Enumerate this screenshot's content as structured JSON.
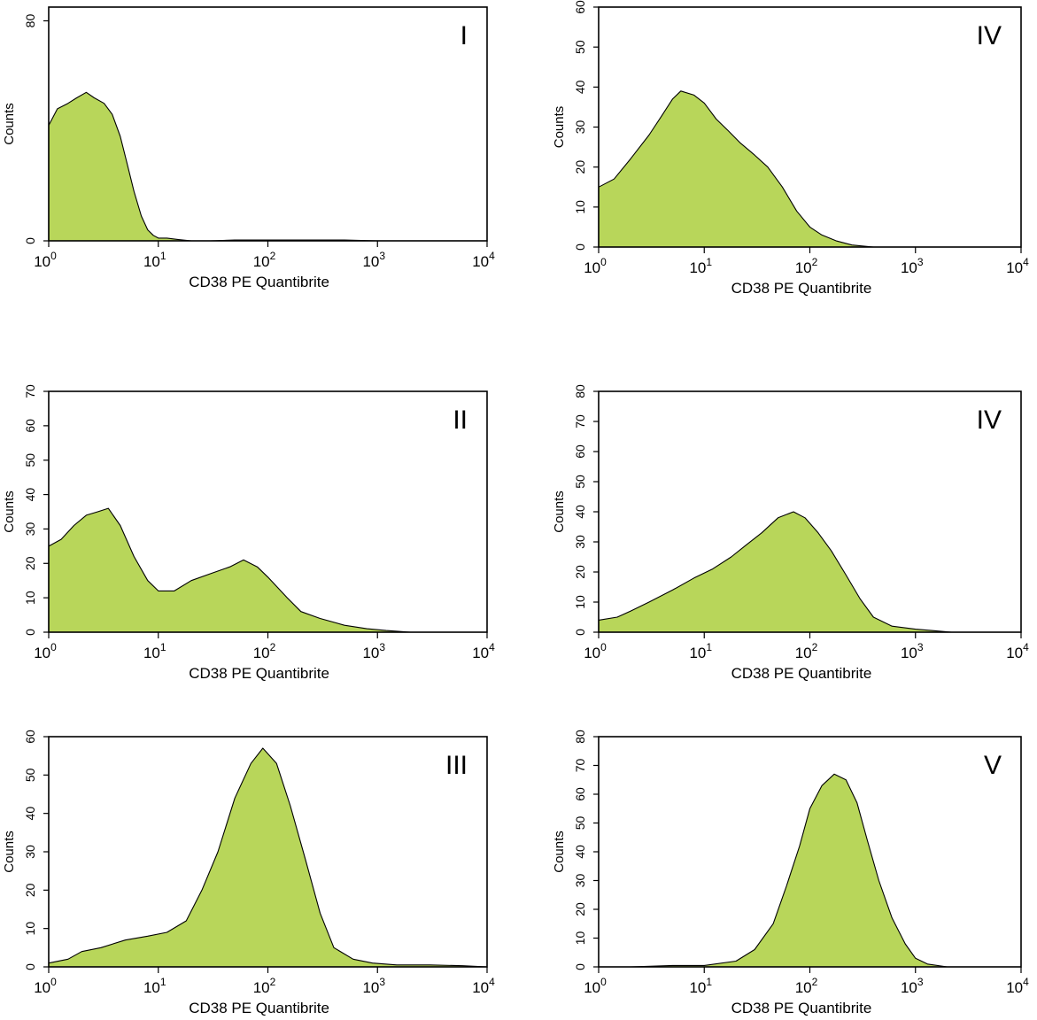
{
  "figure": {
    "title": ""
  },
  "colors": {
    "fill": "#b8d65a",
    "outline": "#000000",
    "background": "#ffffff"
  },
  "chart_data": [
    {
      "id": "I",
      "type": "area",
      "panel_label": "I",
      "xlabel": "CD38 PE Quantibrite",
      "ylabel": "Counts",
      "xscale": "log",
      "xlim": [
        1,
        10000
      ],
      "xtick_exponents": [
        "0",
        "1",
        "2",
        "3",
        "4"
      ],
      "ylim": [
        0,
        85
      ],
      "yticks": [
        "0",
        "80"
      ],
      "grid": false,
      "x": [
        1,
        1.2,
        1.5,
        1.8,
        2.2,
        2.6,
        3.2,
        3.8,
        4.5,
        5.2,
        6,
        7,
        8,
        9,
        10,
        12,
        15,
        20,
        30,
        50,
        100,
        200,
        500,
        1000,
        3000,
        10000
      ],
      "values": [
        42,
        48,
        50,
        52,
        54,
        52,
        50,
        46,
        38,
        28,
        18,
        9,
        4,
        2,
        1,
        1,
        0.5,
        0,
        0,
        0.3,
        0.3,
        0.3,
        0.3,
        0,
        0,
        0
      ]
    },
    {
      "id": "II",
      "type": "area",
      "panel_label": "II",
      "xlabel": "CD38 PE Quantibrite",
      "ylabel": "Counts",
      "xscale": "log",
      "xlim": [
        1,
        10000
      ],
      "xtick_exponents": [
        "0",
        "1",
        "2",
        "3",
        "4"
      ],
      "ylim": [
        0,
        70
      ],
      "yticks": [
        "0",
        "10",
        "20",
        "30",
        "40",
        "50",
        "60",
        "70"
      ],
      "grid": false,
      "x": [
        1,
        1.3,
        1.7,
        2.2,
        2.8,
        3.5,
        4.5,
        6,
        8,
        10,
        14,
        20,
        30,
        45,
        60,
        80,
        100,
        150,
        200,
        300,
        500,
        800,
        1200,
        2000,
        10000
      ],
      "values": [
        25,
        27,
        31,
        34,
        35,
        36,
        31,
        22,
        15,
        12,
        12,
        15,
        17,
        19,
        21,
        19,
        16,
        10,
        6,
        4,
        2,
        1,
        0.5,
        0,
        0
      ]
    },
    {
      "id": "III",
      "type": "area",
      "panel_label": "III",
      "xlabel": "CD38 PE Quantibrite",
      "ylabel": "Counts",
      "xscale": "log",
      "xlim": [
        1,
        10000
      ],
      "xtick_exponents": [
        "0",
        "1",
        "2",
        "3",
        "4"
      ],
      "ylim": [
        0,
        60
      ],
      "yticks": [
        "0",
        "10",
        "20",
        "30",
        "40",
        "50",
        "60"
      ],
      "grid": false,
      "x": [
        1,
        1.5,
        2,
        3,
        5,
        8,
        12,
        18,
        25,
        35,
        50,
        70,
        90,
        120,
        160,
        220,
        300,
        400,
        600,
        900,
        1500,
        3000,
        6000,
        10000
      ],
      "values": [
        1,
        2,
        4,
        5,
        7,
        8,
        9,
        12,
        20,
        30,
        44,
        53,
        57,
        53,
        42,
        28,
        14,
        5,
        2,
        1,
        0.5,
        0.5,
        0.3,
        0
      ]
    },
    {
      "id": "IV-a",
      "type": "area",
      "panel_label": "IV",
      "xlabel": "CD38 PE Quantibrite",
      "ylabel": "Counts",
      "xscale": "log",
      "xlim": [
        1,
        10000
      ],
      "xtick_exponents": [
        "0",
        "1",
        "2",
        "3",
        "4"
      ],
      "ylim": [
        0,
        60
      ],
      "yticks": [
        "0",
        "10",
        "20",
        "30",
        "40",
        "50",
        "60"
      ],
      "grid": false,
      "x": [
        1,
        1.4,
        2,
        3,
        4,
        5,
        6,
        8,
        10,
        13,
        17,
        22,
        30,
        40,
        55,
        75,
        100,
        130,
        180,
        250,
        400,
        1000,
        10000
      ],
      "values": [
        15,
        17,
        22,
        28,
        33,
        37,
        39,
        38,
        36,
        32,
        29,
        26,
        23,
        20,
        15,
        9,
        5,
        3,
        1.5,
        0.5,
        0,
        0,
        0
      ]
    },
    {
      "id": "IV-b",
      "type": "area",
      "panel_label": "IV",
      "xlabel": "CD38 PE Quantibrite",
      "ylabel": "Counts",
      "xscale": "log",
      "xlim": [
        1,
        10000
      ],
      "xtick_exponents": [
        "0",
        "1",
        "2",
        "3",
        "4"
      ],
      "ylim": [
        0,
        80
      ],
      "yticks": [
        "0",
        "10",
        "20",
        "30",
        "40",
        "50",
        "60",
        "70",
        "80"
      ],
      "grid": false,
      "x": [
        1,
        1.5,
        2,
        3,
        5,
        8,
        12,
        18,
        25,
        35,
        50,
        70,
        90,
        120,
        160,
        220,
        300,
        400,
        600,
        1000,
        1500,
        2200,
        10000
      ],
      "values": [
        4,
        5,
        7,
        10,
        14,
        18,
        21,
        25,
        29,
        33,
        38,
        40,
        38,
        33,
        27,
        19,
        11,
        5,
        2,
        1,
        0.5,
        0,
        0
      ]
    },
    {
      "id": "V",
      "type": "area",
      "panel_label": "V",
      "xlabel": "CD38 PE Quantibrite",
      "ylabel": "Counts",
      "xscale": "log",
      "xlim": [
        1,
        10000
      ],
      "xtick_exponents": [
        "0",
        "1",
        "2",
        "3",
        "4"
      ],
      "ylim": [
        0,
        80
      ],
      "yticks": [
        "0",
        "10",
        "20",
        "30",
        "40",
        "50",
        "60",
        "70",
        "80"
      ],
      "grid": false,
      "x": [
        1,
        2,
        5,
        10,
        20,
        30,
        45,
        60,
        80,
        100,
        130,
        170,
        220,
        280,
        350,
        450,
        600,
        800,
        1000,
        1300,
        2000,
        10000
      ],
      "values": [
        0,
        0,
        0.5,
        0.5,
        2,
        6,
        15,
        28,
        42,
        55,
        63,
        67,
        65,
        57,
        44,
        30,
        17,
        8,
        3,
        1,
        0,
        0
      ]
    }
  ]
}
